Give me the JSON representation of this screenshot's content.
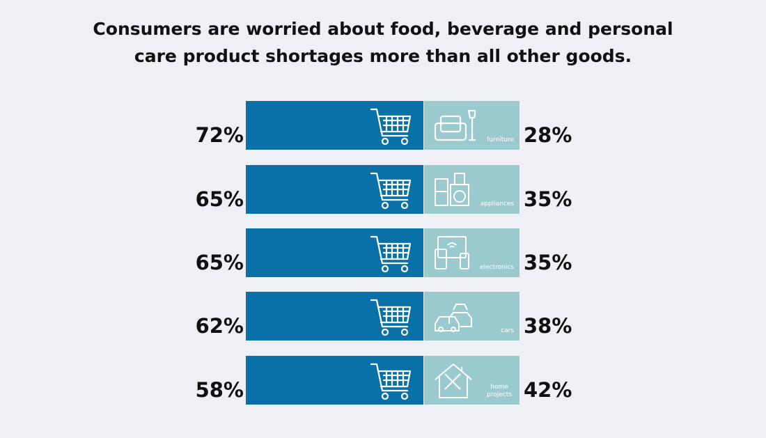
{
  "title": "Consumers are worried about food, beverage and personal care product shortages more than all other goods.",
  "rows": [
    {
      "left": "72%",
      "category": "furniture",
      "right": "28%"
    },
    {
      "left": "65%",
      "category": "appliances",
      "right": "35%"
    },
    {
      "left": "65%",
      "category": "electronics",
      "right": "35%"
    },
    {
      "left": "62%",
      "category": "cars",
      "right": "38%"
    },
    {
      "left": "58%",
      "category": "home projects",
      "right": "42%"
    }
  ]
}
